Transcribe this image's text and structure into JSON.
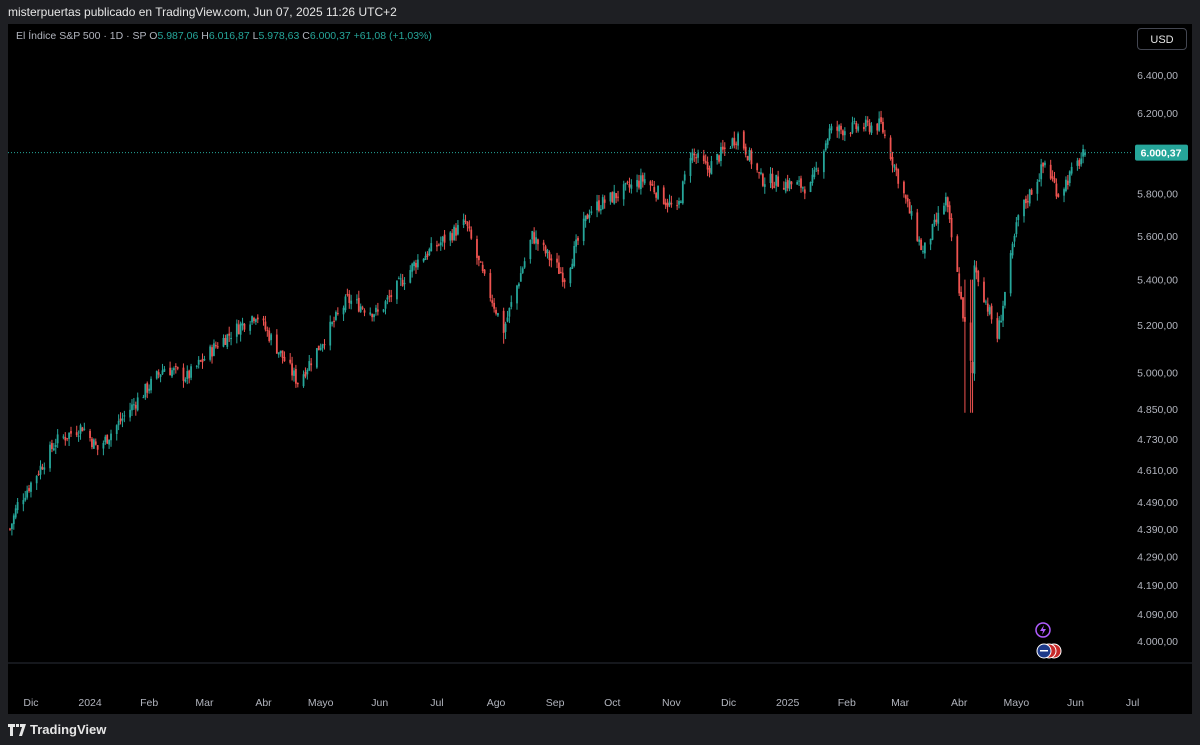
{
  "header": {
    "text": "misterpuertas publicado en TradingView.com, Jun 07, 2025 11:26 UTC+2"
  },
  "legend": {
    "symbol": "El Índice S&P 500 · 1D · SP",
    "o_label": "O",
    "o": "5.987,06",
    "h_label": "H",
    "h": "6.016,87",
    "l_label": "L",
    "l": "5.978,63",
    "c_label": "C",
    "c": "6.000,37",
    "change": "+61,08 (+1,03%)"
  },
  "currency_button": "USD",
  "price_tag": "6.000,37",
  "footer": {
    "brand": "TradingView"
  },
  "colors": {
    "up": "#26a69a",
    "down": "#ef5350",
    "background": "#000000",
    "text": "#b2b5be"
  },
  "icons": [
    "lightning-event-icon",
    "us-flag-event-icon"
  ],
  "chart_data": {
    "type": "candlestick",
    "symbol": "S&P 500",
    "interval": "1D",
    "scale": "log",
    "y_ticks": [
      4000,
      4090,
      4190,
      4290,
      4390,
      4490,
      4610,
      4730,
      4850,
      5000,
      5200,
      5400,
      5600,
      5800,
      6000,
      6200,
      6400
    ],
    "y_tick_labels": [
      "4.000,00",
      "4.090,00",
      "4.190,00",
      "4.290,00",
      "4.390,00",
      "4.490,00",
      "4.610,00",
      "4.730,00",
      "4.850,00",
      "5.000,00",
      "5.200,00",
      "5.400,00",
      "5.600,00",
      "5.800,00",
      "6.000,00",
      "6.200,00",
      "6.400,00"
    ],
    "x_ticks": [
      "Dic",
      "2024",
      "Feb",
      "Mar",
      "Abr",
      "Mayo",
      "Jun",
      "Jul",
      "Ago",
      "Sep",
      "Oct",
      "Nov",
      "Dic",
      "2025",
      "Feb",
      "Mar",
      "Abr",
      "Mayo",
      "Jun",
      "Jul"
    ],
    "last_price": 6000.37,
    "key_points": [
      {
        "date": "2023-11-20",
        "close": 4390
      },
      {
        "date": "2023-11-24",
        "close": 4480
      },
      {
        "date": "2023-12-01",
        "close": 4560
      },
      {
        "date": "2023-12-14",
        "close": 4720
      },
      {
        "date": "2023-12-28",
        "close": 4780
      },
      {
        "date": "2024-01-05",
        "close": 4690
      },
      {
        "date": "2024-01-22",
        "close": 4850
      },
      {
        "date": "2024-02-09",
        "close": 5020
      },
      {
        "date": "2024-02-21",
        "close": 4980
      },
      {
        "date": "2024-03-08",
        "close": 5120
      },
      {
        "date": "2024-03-28",
        "close": 5250
      },
      {
        "date": "2024-04-19",
        "close": 4960
      },
      {
        "date": "2024-05-15",
        "close": 5310
      },
      {
        "date": "2024-05-31",
        "close": 5250
      },
      {
        "date": "2024-06-20",
        "close": 5480
      },
      {
        "date": "2024-07-16",
        "close": 5660
      },
      {
        "date": "2024-07-25",
        "close": 5420
      },
      {
        "date": "2024-08-05",
        "close": 5180
      },
      {
        "date": "2024-08-20",
        "close": 5600
      },
      {
        "date": "2024-09-06",
        "close": 5410
      },
      {
        "date": "2024-09-19",
        "close": 5720
      },
      {
        "date": "2024-10-18",
        "close": 5870
      },
      {
        "date": "2024-11-04",
        "close": 5710
      },
      {
        "date": "2024-11-11",
        "close": 6000
      },
      {
        "date": "2024-11-20",
        "close": 5920
      },
      {
        "date": "2024-12-06",
        "close": 6090
      },
      {
        "date": "2024-12-18",
        "close": 5870
      },
      {
        "date": "2025-01-13",
        "close": 5830
      },
      {
        "date": "2025-01-23",
        "close": 6110
      },
      {
        "date": "2025-02-19",
        "close": 6140
      },
      {
        "date": "2025-03-13",
        "close": 5520
      },
      {
        "date": "2025-03-25",
        "close": 5770
      },
      {
        "date": "2025-04-08",
        "close": 4980
      },
      {
        "date": "2025-04-09",
        "close": 5460
      },
      {
        "date": "2025-04-21",
        "close": 5150
      },
      {
        "date": "2025-05-02",
        "close": 5690
      },
      {
        "date": "2025-05-16",
        "close": 5950
      },
      {
        "date": "2025-05-23",
        "close": 5800
      },
      {
        "date": "2025-06-06",
        "close": 6000.37
      }
    ]
  }
}
